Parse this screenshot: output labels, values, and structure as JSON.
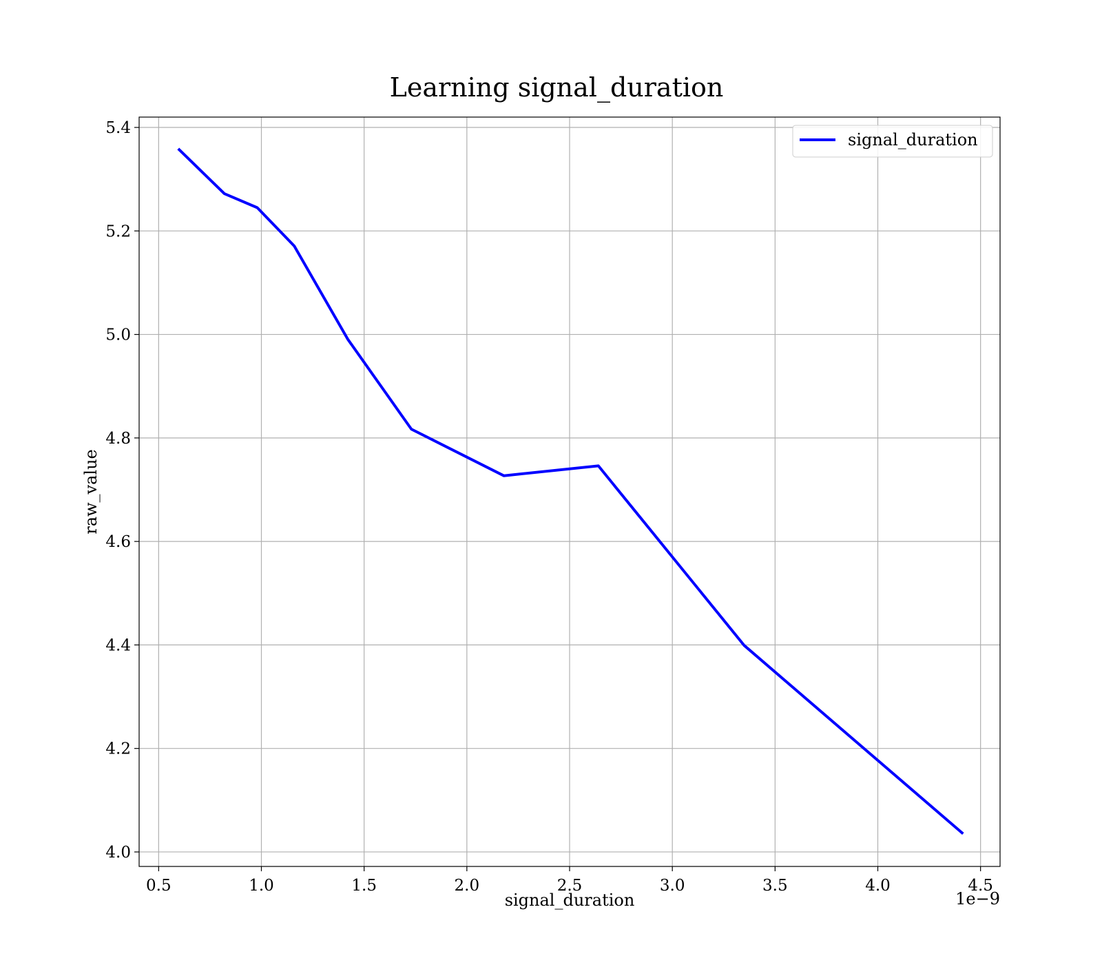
{
  "chart_data": {
    "type": "line",
    "title": "Learning signal_duration",
    "xlabel": "signal_duration",
    "ylabel": "raw_value",
    "x_offset_label": "1e−9",
    "xlim": [
      0.405,
      4.595
    ],
    "ylim": [
      3.972,
      5.42
    ],
    "xticks": [
      0.5,
      1.0,
      1.5,
      2.0,
      2.5,
      3.0,
      3.5,
      4.0,
      4.5
    ],
    "xtick_labels": [
      "0.5",
      "1.0",
      "1.5",
      "2.0",
      "2.5",
      "3.0",
      "3.5",
      "4.0",
      "4.5"
    ],
    "yticks": [
      4.0,
      4.2,
      4.4,
      4.6,
      4.8,
      5.0,
      5.2,
      5.4
    ],
    "ytick_labels": [
      "4.0",
      "4.2",
      "4.4",
      "4.6",
      "4.8",
      "5.0",
      "5.2",
      "5.4"
    ],
    "grid": true,
    "legend_position": "top-right",
    "series": [
      {
        "name": "signal_duration",
        "color": "#0000ff",
        "x": [
          0.6,
          0.82,
          0.98,
          1.16,
          1.42,
          1.73,
          2.18,
          2.64,
          3.35,
          4.41
        ],
        "y": [
          5.357,
          5.272,
          5.245,
          5.171,
          4.991,
          4.817,
          4.727,
          4.746,
          4.399,
          4.037
        ]
      }
    ]
  }
}
